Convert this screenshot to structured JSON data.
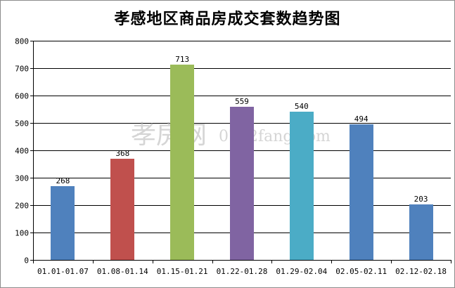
{
  "chart_data": {
    "type": "bar",
    "title": "孝感地区商品房成交套数趋势图",
    "xlabel": "",
    "ylabel": "",
    "categories": [
      "01.01-01.07",
      "01.08-01.14",
      "01.15-01.21",
      "01.22-01.28",
      "01.29-02.04",
      "02.05-02.11",
      "02.12-02.18"
    ],
    "values": [
      268,
      368,
      713,
      559,
      540,
      494,
      203
    ],
    "bar_colors": [
      "#4f81bd",
      "#c0504d",
      "#9bbb59",
      "#8064a2",
      "#4bacc6",
      "#4f81bd",
      "#4f81bd"
    ],
    "ylim": [
      0,
      800
    ],
    "yticks": [
      0,
      100,
      200,
      300,
      400,
      500,
      600,
      700,
      800
    ],
    "grid": true,
    "show_data_labels": true
  },
  "watermark": {
    "cn": "孝房网",
    "en": "0712fang.com"
  }
}
